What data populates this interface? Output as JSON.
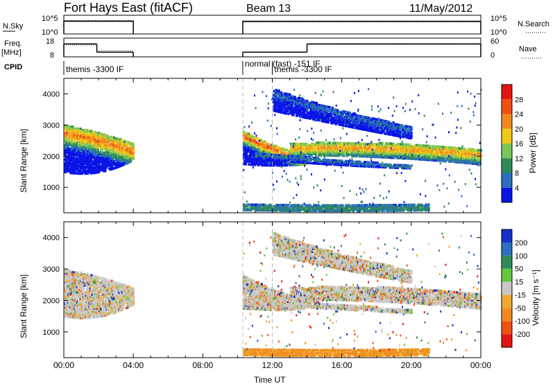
{
  "header": {
    "station": "Fort Hays East (fitACF)",
    "beam": "Beam 13",
    "date": "11/May/2012"
  },
  "colors": {
    "power": [
      "#0a14e6",
      "#2b6fbd",
      "#2e8b57",
      "#7bc85a",
      "#f0c818",
      "#f08c1e",
      "#f05014",
      "#e61414"
    ],
    "velocity": [
      "#e61414",
      "#f05014",
      "#f08c1e",
      "#f0aa32",
      "#c8c8c8",
      "#64c83c",
      "#2e8b57",
      "#2b6fbd",
      "#1432c8"
    ]
  },
  "chart_data": [
    {
      "type": "line",
      "name": "N.Sky / N.Search",
      "labels": {
        "left": "N.Sky",
        "right": "N.Search"
      },
      "left_ticks": [
        "10^5",
        "10^0"
      ],
      "right_ticks": [
        "10^5",
        "10^0"
      ],
      "x_ticks": [
        "00:00",
        "04:00",
        "08:00",
        "12:00",
        "16:00",
        "20:00",
        "00:00"
      ],
      "xlim_hours": [
        0,
        24
      ],
      "segments": [
        {
          "start": 0.0,
          "end": 4.0,
          "nsky_log": 3.4,
          "nsearch_log": 3.6
        },
        {
          "start": 10.3,
          "end": 24.0,
          "nsky_log": 3.3,
          "nsearch_log": 3.5
        }
      ]
    },
    {
      "type": "line",
      "name": "Freq / Nave",
      "labels": {
        "left_top": "Freq.",
        "left_bottom": "[MHz]",
        "right": "Nave"
      },
      "left_ticks": [
        "18",
        "8"
      ],
      "right_ticks": [
        "60",
        "0"
      ],
      "freq_ylim": [
        8,
        18
      ],
      "nave_ylim": [
        0,
        60
      ],
      "segments": [
        {
          "start": 0.0,
          "end": 1.9,
          "freq": 14.9,
          "nave": 38
        },
        {
          "start": 1.9,
          "end": 4.0,
          "freq": 10.5,
          "nave": 20
        },
        {
          "start": 10.3,
          "end": 14.0,
          "freq": 10.5,
          "nave": 15
        },
        {
          "start": 14.0,
          "end": 24.0,
          "freq": 14.9,
          "nave": 40
        }
      ]
    },
    {
      "type": "table",
      "name": "CPID",
      "label": "CPID",
      "entries": [
        {
          "start": 0.0,
          "label": "themis -3300 IF",
          "row": 1
        },
        {
          "start": 10.3,
          "label": "normal (fast) -151 IF",
          "row": 0
        },
        {
          "start": 12.0,
          "label": "themis -3300 IF",
          "row": 1
        }
      ]
    },
    {
      "type": "heatmap",
      "name": "power",
      "ylabel": "Slant Range [km]",
      "y_ticks": [
        1000,
        2000,
        3000,
        4000
      ],
      "ylim": [
        180,
        4500
      ],
      "xlim_hours": [
        0,
        24
      ],
      "colorbar": {
        "label": "Power [dB]",
        "ticks": [
          4,
          8,
          12,
          16,
          20,
          24,
          28
        ],
        "range": [
          0,
          32
        ]
      },
      "echo_bands": [
        {
          "t0": 0.0,
          "t1": 4.0,
          "r0": [
            2700,
            1600
          ],
          "rmid": [
            2500,
            1400
          ],
          "r1": [
            2100,
            2000
          ],
          "width": 500,
          "peak_db": 24
        },
        {
          "t0": 10.3,
          "t1": 14.0,
          "r0": [
            2600,
            1800
          ],
          "rmid": [
            2100,
            1700
          ],
          "r1": [
            1800,
            1800
          ],
          "width": 300,
          "peak_db": 26
        },
        {
          "t0": 13.0,
          "t1": 24.0,
          "r0": [
            2200,
            2100
          ],
          "rmid": [
            2300,
            2100
          ],
          "r1": [
            2000,
            1800
          ],
          "width": 350,
          "peak_db": 22
        },
        {
          "t0": 11.0,
          "t1": 20.0,
          "r0": [
            2000,
            1900
          ],
          "rmid": [
            1800,
            1700
          ],
          "r1": [
            1600,
            1600
          ],
          "width": 120,
          "peak_db": 8
        },
        {
          "t0": 12.0,
          "t1": 20.0,
          "r0": [
            4000,
            3500
          ],
          "rmid": [
            3200,
            3000
          ],
          "r1": [
            2800,
            2600
          ],
          "width": 250,
          "peak_db": 6
        },
        {
          "t0": 10.3,
          "t1": 21.0,
          "r0": [
            300,
            300
          ],
          "rmid": [
            250,
            250
          ],
          "r1": [
            300,
            300
          ],
          "width": 250,
          "peak_db": 10
        }
      ]
    },
    {
      "type": "heatmap",
      "name": "velocity",
      "ylabel": "Slant Range [km]",
      "y_ticks": [
        1000,
        2000,
        3000,
        4000
      ],
      "ylim": [
        180,
        4500
      ],
      "xlim_hours": [
        0,
        24
      ],
      "xlabel": "Time UT",
      "colorbar": {
        "label": "Velocity [m s⁻¹]",
        "ticks": [
          -200,
          -100,
          -50,
          -15,
          15,
          50,
          100,
          200
        ],
        "tick_labels": [
          "-200",
          "-100",
          "-50",
          "-15",
          "15",
          "50",
          "100",
          "200"
        ]
      }
    }
  ]
}
